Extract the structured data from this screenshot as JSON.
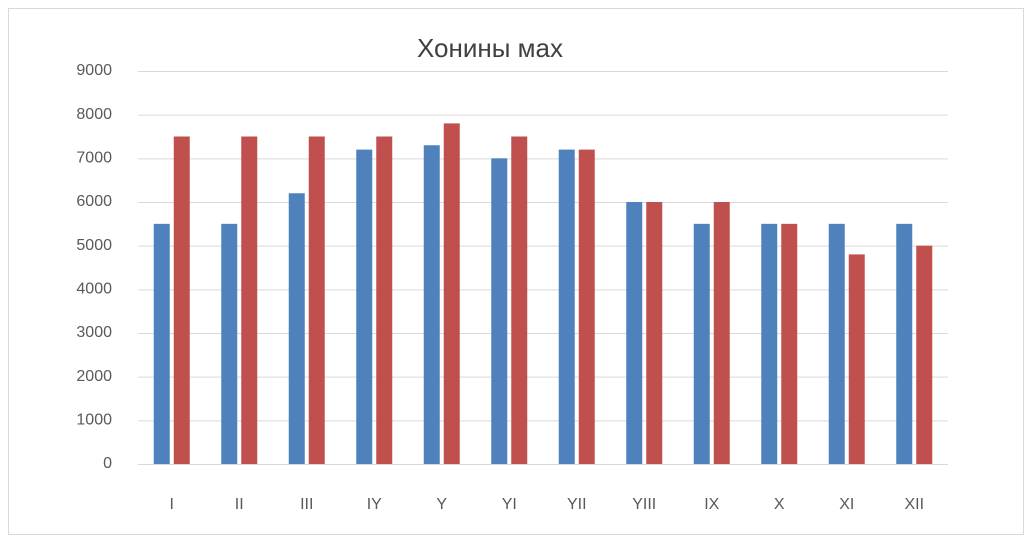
{
  "chart_data": {
    "type": "bar",
    "title": "Хонины мах",
    "categories": [
      "I",
      "II",
      "III",
      "IY",
      "Y",
      "YI",
      "YII",
      "YIII",
      "IX",
      "X",
      "XI",
      "XII"
    ],
    "series": [
      {
        "color": "#4f81bd",
        "values": [
          5500,
          5500,
          6200,
          7200,
          7300,
          7000,
          7200,
          6000,
          5500,
          5500,
          5500,
          5500
        ]
      },
      {
        "color": "#c0504d",
        "values": [
          7500,
          7500,
          7500,
          7500,
          7800,
          7500,
          7200,
          6000,
          6000,
          5500,
          4800,
          5000
        ]
      }
    ],
    "ylim": [
      0,
      9000
    ],
    "yticks": [
      0,
      1000,
      2000,
      3000,
      4000,
      5000,
      6000,
      7000,
      8000,
      9000
    ],
    "grid": true
  }
}
